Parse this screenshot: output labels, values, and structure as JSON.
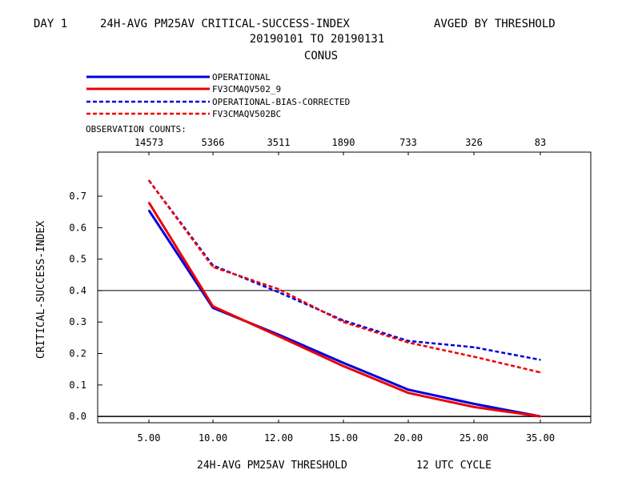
{
  "header": {
    "day": "DAY 1",
    "title": "24H-AVG PM25AV CRITICAL-SUCCESS-INDEX",
    "averaging": "AVGED BY THRESHOLD",
    "date_range": "20190101 TO 20190131",
    "region": "CONUS"
  },
  "observation_counts_label": "OBSERVATION COUNTS:",
  "x_footer": {
    "threshold_label": "24H-AVG PM25AV THRESHOLD",
    "cycle_label": "12 UTC CYCLE"
  },
  "chart_data": {
    "type": "line",
    "title": "24H-AVG PM25AV CRITICAL-SUCCESS-INDEX",
    "xlabel": "24H-AVG PM25AV THRESHOLD",
    "ylabel": "CRITICAL-SUCCESS-INDEX",
    "categories": [
      "5.00",
      "10.00",
      "12.00",
      "15.00",
      "20.00",
      "25.00",
      "35.00"
    ],
    "observation_counts": [
      "14573",
      "5366",
      "3511",
      "1890",
      "733",
      "326",
      "83"
    ],
    "y_ticks": [
      "0.0",
      "0.1",
      "0.2",
      "0.3",
      "0.4",
      "0.5",
      "0.6",
      "0.7"
    ],
    "ylim": [
      -0.02,
      0.84
    ],
    "reference_line": 0.4,
    "legend_position": "top-left",
    "grid": false,
    "series": [
      {
        "name": "OPERATIONAL",
        "color": "#0000dd",
        "dash": "solid",
        "values": [
          0.655,
          0.345,
          0.26,
          0.17,
          0.085,
          0.04,
          0.0
        ]
      },
      {
        "name": "FV3CMAQV502_9",
        "color": "#ee0000",
        "dash": "solid",
        "values": [
          0.68,
          0.35,
          0.255,
          0.16,
          0.075,
          0.03,
          0.0
        ]
      },
      {
        "name": "OPERATIONAL-BIAS-CORRECTED",
        "color": "#0000dd",
        "dash": "dashed",
        "values": [
          0.75,
          0.48,
          0.395,
          0.305,
          0.24,
          0.22,
          0.18
        ]
      },
      {
        "name": "FV3CMAQV502BC",
        "color": "#ee0000",
        "dash": "dashed",
        "values": [
          0.75,
          0.475,
          0.405,
          0.3,
          0.235,
          0.19,
          0.14
        ]
      }
    ]
  }
}
